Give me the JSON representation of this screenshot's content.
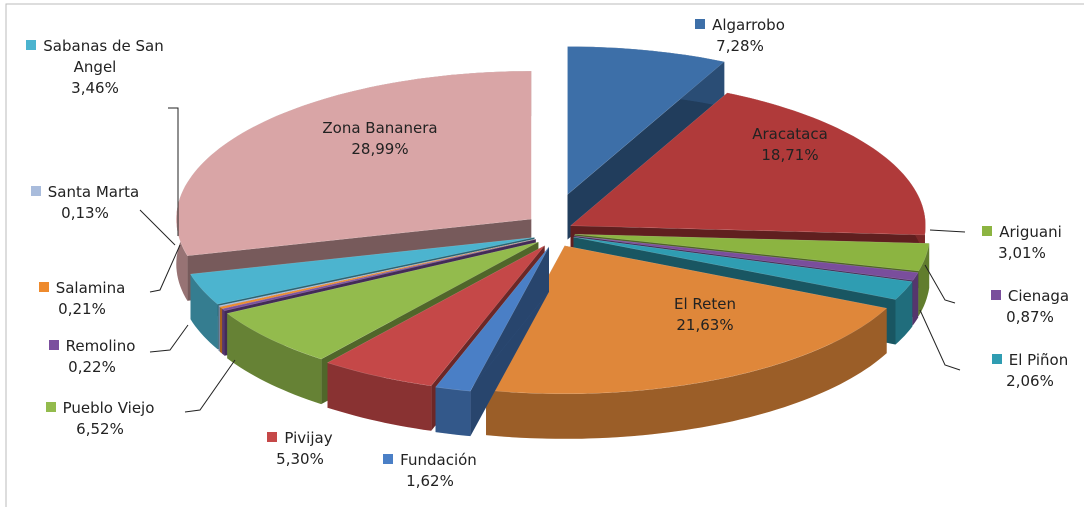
{
  "chart_data": {
    "type": "pie",
    "categories": [
      "Algarrobo",
      "Aracataca",
      "Ariguani",
      "Cienaga",
      "El Piñon",
      "El Reten",
      "Fundación",
      "Pivijay",
      "Pueblo Viejo",
      "Remolino",
      "Salamina",
      "Santa Marta",
      "Sabanas de San Angel",
      "Zona Bananera"
    ],
    "values": [
      7.28,
      18.71,
      3.01,
      0.87,
      2.06,
      21.63,
      1.62,
      5.3,
      6.52,
      0.22,
      0.21,
      0.13,
      3.46,
      28.99
    ],
    "value_labels": [
      "7,28%",
      "18,71%",
      "3,01%",
      "0,87%",
      "2,06%",
      "21,63%",
      "1,62%",
      "5,30%",
      "6,52%",
      "0,22%",
      "0,21%",
      "0,13%",
      "3,46%",
      "28,99%"
    ],
    "colors": [
      "#3d6fa8",
      "#b03a3a",
      "#8cb441",
      "#7a4e9c",
      "#2f9db2",
      "#df873a",
      "#4a7fc6",
      "#c54848",
      "#93bb4d",
      "#7b4f9e",
      "#ee8a2d",
      "#a9bcdc",
      "#4cb4cf",
      "#d9a5a6"
    ]
  }
}
